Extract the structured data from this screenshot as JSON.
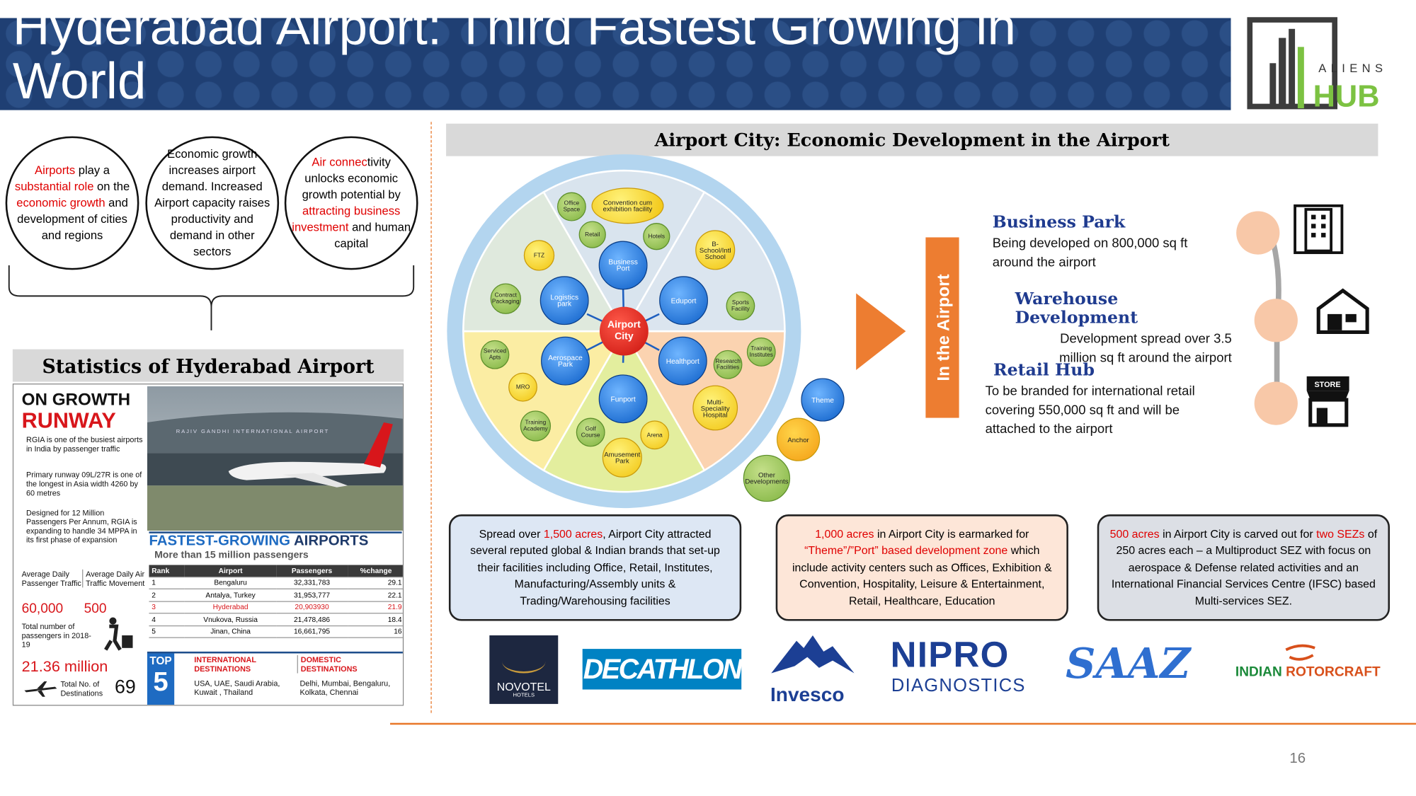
{
  "header": {
    "title": "Hyderabad Airport: Third Fastest Growing in World",
    "logo_top": "ALIENS",
    "logo_bottom": "HUB"
  },
  "circles": [
    {
      "parts": [
        {
          "text": "Airports",
          "color": "#e00000"
        },
        {
          "text": " play a "
        },
        {
          "text": "substantial role",
          "color": "#e00000"
        },
        {
          "text": " on the "
        },
        {
          "text": "economic growth",
          "color": "#e00000"
        },
        {
          "text": " and development of cities and regions"
        }
      ]
    },
    {
      "parts": [
        {
          "text": "Economic growth increases airport demand. Increased Airport capacity raises productivity and demand in other sectors"
        }
      ]
    },
    {
      "parts": [
        {
          "text": "Air connec",
          "color": "#e00000"
        },
        {
          "text": "tivity unlocks economic growth potential by "
        },
        {
          "text": "attracting business investment",
          "color": "#e00000"
        },
        {
          "text": " and human capital"
        }
      ]
    }
  ],
  "stats": {
    "title": "Statistics of Hyderabad Airport",
    "clipping": {
      "headline1": "ON GROWTH",
      "headline2": "RUNWAY",
      "bullets": [
        "RGIA is one of the busiest airports in India by passenger traffic",
        "Primary runway 09L/27R is one of the longest in Asia width 4260 by 60 metres",
        "Designed for 12 Million Passengers Per Annum, RGIA is expanding to handle 34 MPPA in its first phase of expansion"
      ],
      "sign": "RAJIV GANDHI INTERNATIONAL AIRPORT",
      "daily_pax_label": "Average Daily Passenger Traffic",
      "daily_pax": "60,000",
      "daily_atm_label": "Average Daily Air Traffic Movement",
      "daily_atm": "500",
      "total_label": "Total number of passengers in 2018-19",
      "total": "21.36 million",
      "dest_label": "Total No. of Destinations",
      "dest": "69",
      "table_title1": "FASTEST-GROWING",
      "table_title2": "AIRPORTS",
      "table_subtitle": "More than 15 million passengers",
      "table_header": [
        "Rank",
        "Airport",
        "Passengers",
        "%change"
      ],
      "table_rows": [
        [
          "1",
          "Bengaluru",
          "32,331,783",
          "29.1"
        ],
        [
          "2",
          "Antalya, Turkey",
          "31,953,777",
          "22.1"
        ],
        [
          "3",
          "Hyderabad",
          "20,903930",
          "21.9"
        ],
        [
          "4",
          "Vnukova, Russia",
          "21,478,486",
          "18.4"
        ],
        [
          "5",
          "Jinan, China",
          "16,661,795",
          "16"
        ]
      ],
      "top_label1": "TOP",
      "top_label2": "5",
      "intl_title": "INTERNATIONAL DESTINATIONS",
      "intl": "USA, UAE, Saudi Arabia, Kuwait , Thailand",
      "dom_title": "DOMESTIC DESTINATIONS",
      "dom": "Delhi, Mumbai, Bengaluru, Kolkata, Chennai"
    }
  },
  "airport_city": {
    "title": "Airport City: Economic Development in the Airport",
    "wheel": {
      "center": "Airport City",
      "nodes": [
        "Business Port",
        "Logistics park",
        "Eduport",
        "Aerospace Park",
        "Healthport",
        "Funport",
        "Office Space",
        "Retail",
        "Hotels",
        "Contract Packaging",
        "Sports Facility",
        "Serviced Apts",
        "Training Institutes",
        "Research Facilities",
        "Training Academy",
        "Golf Course",
        "Other Developments",
        "Convention cum exhibition facility",
        "FTZ",
        "B-School/Intl School",
        "MRO",
        "Arena",
        "Amusement Park",
        "Multi-Speciality Hospital",
        "Anchor",
        "Theme"
      ]
    },
    "bar_label": "In the Airport",
    "items": [
      {
        "title": "Business Park",
        "text": "Being developed on 800,000 sq ft around the airport"
      },
      {
        "title": "Warehouse Development",
        "text": "Development spread over 3.5 million sq ft around the airport"
      },
      {
        "title": "Retail Hub",
        "text": "To be branded for international retail covering 550,000 sq ft and will be attached to the airport"
      }
    ],
    "store_label": "STORE"
  },
  "boxes": [
    {
      "parts": [
        {
          "text": "Spread over "
        },
        {
          "text": "1,500 acres",
          "color": "#e00000"
        },
        {
          "text": ", Airport City attracted several reputed global & Indian brands that set-up their facilities including Office, Retail, Institutes, Manufacturing/Assembly units & Trading/Warehousing facilities"
        }
      ]
    },
    {
      "parts": [
        {
          "text": "1,000 acres",
          "color": "#e00000"
        },
        {
          "text": " in Airport City is earmarked for "
        },
        {
          "text": "“Theme”/”Port” based development zone",
          "color": "#e00000"
        },
        {
          "text": " which include activity centers such as Offices, Exhibition & Convention, Hospitality, Leisure & Entertainment, Retail, Healthcare, Education"
        }
      ]
    },
    {
      "parts": [
        {
          "text": "500 acres",
          "color": "#e00000"
        },
        {
          "text": " in Airport City is carved out for "
        },
        {
          "text": "two SEZs",
          "color": "#e00000"
        },
        {
          "text": " of 250 acres each – a Multiproduct SEZ with focus on aerospace & Defense related activities and an International Financial Services Centre (IFSC) based Multi-services SEZ."
        }
      ]
    }
  ],
  "logos": {
    "novotel": "NOVOTEL",
    "novotel_sub": "HOTELS",
    "decathlon": "DECATHLON",
    "invesco": "Invesco",
    "nipro": "NIPRO",
    "nipro_sub": "DIAGNOSTICS",
    "saaz": "SAAZ",
    "rotorcraft1": "INDIAN",
    "rotorcraft2": "ROTORCRAFT"
  },
  "page_number": "16"
}
